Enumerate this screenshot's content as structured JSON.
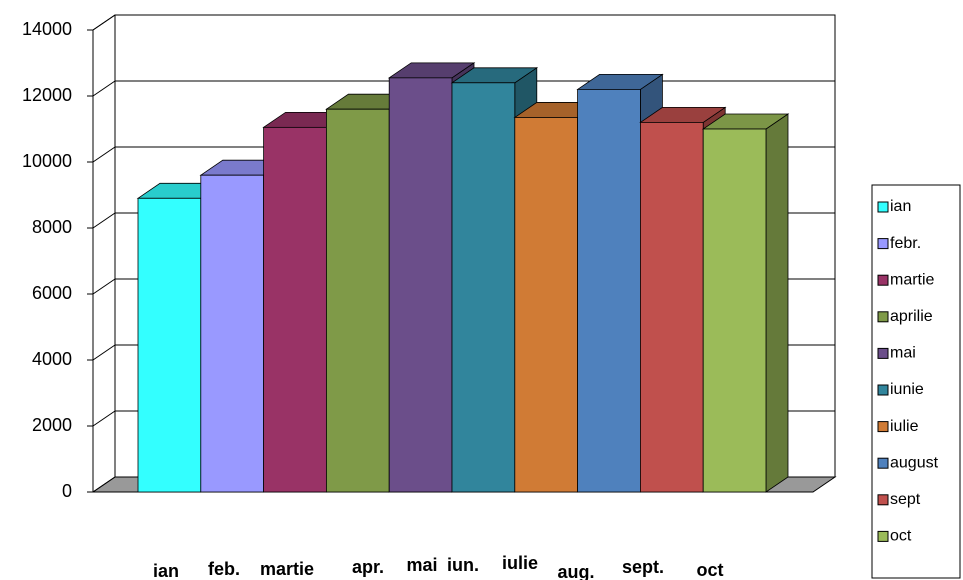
{
  "chart_data": {
    "type": "bar3d",
    "categories": [
      "ian",
      "feb.",
      "martie",
      "apr.",
      "mai",
      "iun.",
      "iulie",
      "aug.",
      "sept.",
      "oct"
    ],
    "values": [
      8900,
      9600,
      11050,
      11600,
      12550,
      12400,
      11350,
      12200,
      11200,
      11000
    ],
    "colors": [
      "#33ffff",
      "#9999ff",
      "#993366",
      "#7f9a48",
      "#6b4e8a",
      "#31859c",
      "#d07b35",
      "#4f81bd",
      "#c0504d",
      "#9bbb59"
    ],
    "legend": [
      "ian",
      "febr.",
      "martie",
      "aprilie",
      "mai",
      "iunie",
      "iulie",
      "august",
      "sept",
      "oct"
    ],
    "ylim": [
      0,
      14000
    ],
    "yticks": [
      0,
      2000,
      4000,
      6000,
      8000,
      10000,
      12000,
      14000
    ],
    "grid": true
  }
}
